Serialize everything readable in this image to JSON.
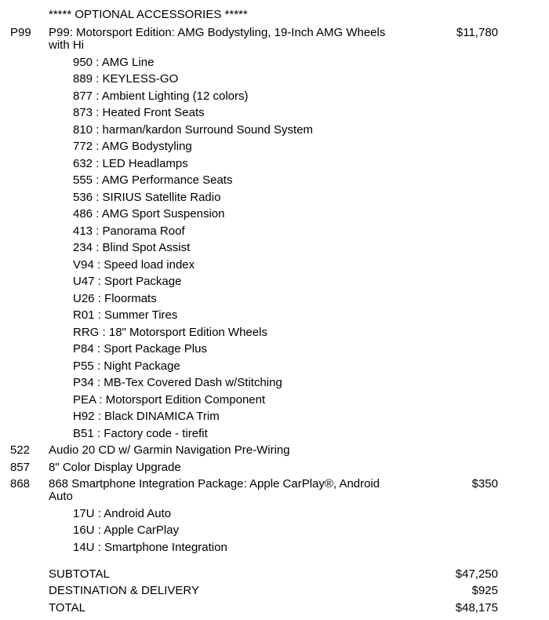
{
  "document": {
    "header": "***** OPTIONAL ACCESSORIES *****",
    "sub_item_separator": " : ",
    "items": [
      {
        "code": "P99",
        "description": "P99: Motorsport Edition: AMG Bodystyling, 19-Inch AMG Wheels with Hi",
        "price": "$11,780",
        "sub_items": [
          {
            "code": "950",
            "label": "AMG Line"
          },
          {
            "code": "889",
            "label": "KEYLESS-GO"
          },
          {
            "code": "877",
            "label": "Ambient Lighting (12 colors)"
          },
          {
            "code": "873",
            "label": "Heated Front Seats"
          },
          {
            "code": "810",
            "label": "harman/kardon Surround Sound System"
          },
          {
            "code": "772",
            "label": "AMG Bodystyling"
          },
          {
            "code": "632",
            "label": "LED Headlamps"
          },
          {
            "code": "555",
            "label": "AMG Performance Seats"
          },
          {
            "code": "536",
            "label": "SIRIUS Satellite Radio"
          },
          {
            "code": "486",
            "label": "AMG Sport Suspension"
          },
          {
            "code": "413",
            "label": "Panorama Roof"
          },
          {
            "code": "234",
            "label": "Blind Spot Assist"
          },
          {
            "code": "V94",
            "label": "Speed load index"
          },
          {
            "code": "U47",
            "label": "Sport Package"
          },
          {
            "code": "U26",
            "label": "Floormats"
          },
          {
            "code": "R01",
            "label": "Summer Tires"
          },
          {
            "code": "RRG",
            "label": "18\" Motorsport Edition Wheels"
          },
          {
            "code": "P84",
            "label": "Sport Package Plus"
          },
          {
            "code": "P55",
            "label": "Night Package"
          },
          {
            "code": "P34",
            "label": "MB-Tex Covered Dash w/Stitching"
          },
          {
            "code": "PEA",
            "label": "Motorsport Edition Component"
          },
          {
            "code": "H92",
            "label": "Black DINAMICA Trim"
          },
          {
            "code": "B51",
            "label": "Factory code - tirefit"
          }
        ]
      },
      {
        "code": "522",
        "description": "Audio 20 CD w/ Garmin Navigation Pre-Wiring",
        "price": "",
        "sub_items": []
      },
      {
        "code": "857",
        "description": "8\" Color Display Upgrade",
        "price": "",
        "sub_items": []
      },
      {
        "code": "868",
        "description": "868 Smartphone Integration Package: Apple CarPlay®, Android Auto",
        "price": "$350",
        "sub_items": [
          {
            "code": "17U",
            "label": "Android Auto"
          },
          {
            "code": "16U",
            "label": "Apple CarPlay"
          },
          {
            "code": "14U",
            "label": "Smartphone Integration"
          }
        ]
      }
    ],
    "totals": [
      {
        "label": "SUBTOTAL",
        "value": "$47,250"
      },
      {
        "label": "DESTINATION & DELIVERY",
        "value": "$925"
      },
      {
        "label": "TOTAL",
        "value": "$48,175"
      }
    ]
  }
}
